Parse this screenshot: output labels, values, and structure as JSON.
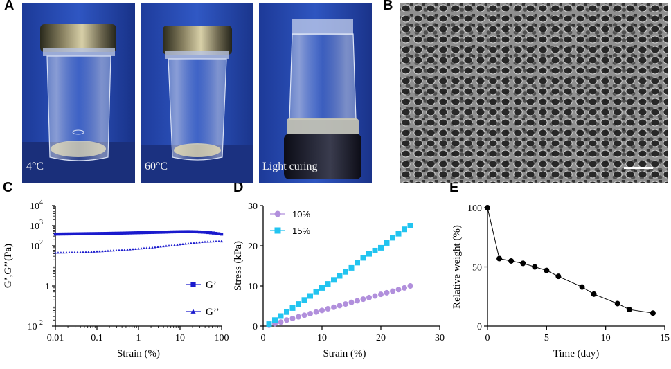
{
  "panel_labels": {
    "a": "A",
    "b": "B",
    "c": "C",
    "d": "D",
    "e": "E"
  },
  "photos": [
    {
      "caption": "4°C"
    },
    {
      "caption": "60°C"
    },
    {
      "caption": "Light curing"
    }
  ],
  "colors": {
    "c_series": "#1a1acd",
    "d_10": "#b18fdc",
    "d_15": "#22c4f0",
    "e_line": "#000000"
  },
  "chart_data": [
    {
      "panel": "C",
      "type": "scatter",
      "xscale": "log",
      "yscale": "log",
      "xlabel": "Strain (%)",
      "ylabel": "G’,G’’(Pa)",
      "xlim": [
        0.01,
        100
      ],
      "ylim": [
        0.01,
        10000
      ],
      "xticks": [
        "0.01",
        "0.1",
        "1",
        "10",
        "100"
      ],
      "yticks": [
        {
          "base": "10",
          "exp": "-2"
        },
        {
          "base": "1",
          "exp": ""
        },
        {
          "base": "10",
          "exp": "2"
        },
        {
          "base": "10",
          "exp": "3"
        },
        {
          "base": "10",
          "exp": "4"
        }
      ],
      "legend_position": "bottom-right",
      "series": [
        {
          "name": "G’",
          "marker": "square",
          "x": [
            0.01,
            0.0158,
            0.0251,
            0.0398,
            0.0631,
            0.1,
            0.158,
            0.251,
            0.398,
            0.631,
            1,
            1.58,
            2.51,
            3.98,
            6.31,
            10,
            15.8,
            25.1,
            39.8,
            63.1,
            100
          ],
          "values": [
            380,
            385,
            390,
            395,
            400,
            405,
            410,
            418,
            425,
            435,
            445,
            455,
            465,
            475,
            490,
            500,
            505,
            495,
            470,
            430,
            380
          ]
        },
        {
          "name": "G’’",
          "marker": "triangle",
          "x": [
            0.01,
            0.0158,
            0.0251,
            0.0398,
            0.0631,
            0.1,
            0.158,
            0.251,
            0.398,
            0.631,
            1,
            1.58,
            2.51,
            3.98,
            6.31,
            10,
            15.8,
            25.1,
            39.8,
            63.1,
            100
          ],
          "values": [
            45,
            46,
            47,
            48,
            50,
            52,
            55,
            58,
            62,
            66,
            72,
            78,
            85,
            95,
            105,
            118,
            130,
            145,
            158,
            165,
            170
          ]
        }
      ]
    },
    {
      "panel": "D",
      "type": "scatter",
      "xlabel": "Strain (%)",
      "ylabel": "Stress (kPa)",
      "xlim": [
        0,
        30
      ],
      "ylim": [
        0,
        30
      ],
      "xticks": [
        "0",
        "10",
        "20",
        "30"
      ],
      "yticks": [
        "0",
        "10",
        "20",
        "30"
      ],
      "legend_position": "top-left",
      "series": [
        {
          "name": "10%",
          "marker": "circle",
          "x": [
            1,
            2,
            3,
            4,
            5,
            6,
            7,
            8,
            9,
            10,
            11,
            12,
            13,
            14,
            15,
            16,
            17,
            18,
            19,
            20,
            21,
            22,
            23,
            24,
            25
          ],
          "values": [
            0.2,
            0.6,
            1.0,
            1.5,
            1.9,
            2.3,
            2.7,
            3.1,
            3.5,
            3.9,
            4.3,
            4.7,
            5.1,
            5.5,
            5.9,
            6.3,
            6.7,
            7.1,
            7.5,
            7.9,
            8.3,
            8.7,
            9.1,
            9.5,
            10.0
          ]
        },
        {
          "name": "15%",
          "marker": "square",
          "x": [
            1,
            2,
            3,
            4,
            5,
            6,
            7,
            8,
            9,
            10,
            11,
            12,
            13,
            14,
            15,
            16,
            17,
            18,
            19,
            20,
            21,
            22,
            23,
            24,
            25
          ],
          "values": [
            0.5,
            1.5,
            2.5,
            3.5,
            4.5,
            5.5,
            6.5,
            7.5,
            8.5,
            9.5,
            10.5,
            11.5,
            12.5,
            13.5,
            14.5,
            15.8,
            17.0,
            18.0,
            18.8,
            19.5,
            20.7,
            22.0,
            23.0,
            24.1,
            25.0
          ]
        }
      ]
    },
    {
      "panel": "E",
      "type": "line",
      "xlabel": "Time (day)",
      "ylabel": "Relative weight (%)",
      "xlim": [
        0,
        15
      ],
      "ylim": [
        0,
        100
      ],
      "xticks": [
        "0",
        "5",
        "10",
        "15"
      ],
      "yticks": [
        "0",
        "50",
        "100"
      ],
      "series": [
        {
          "name": "weight",
          "marker": "circle",
          "x": [
            0,
            1,
            2,
            3,
            4,
            5,
            6,
            8,
            9,
            11,
            12,
            14
          ],
          "values": [
            100,
            57,
            55,
            53,
            50,
            47,
            42,
            33,
            27,
            19,
            14,
            11
          ]
        }
      ]
    }
  ]
}
